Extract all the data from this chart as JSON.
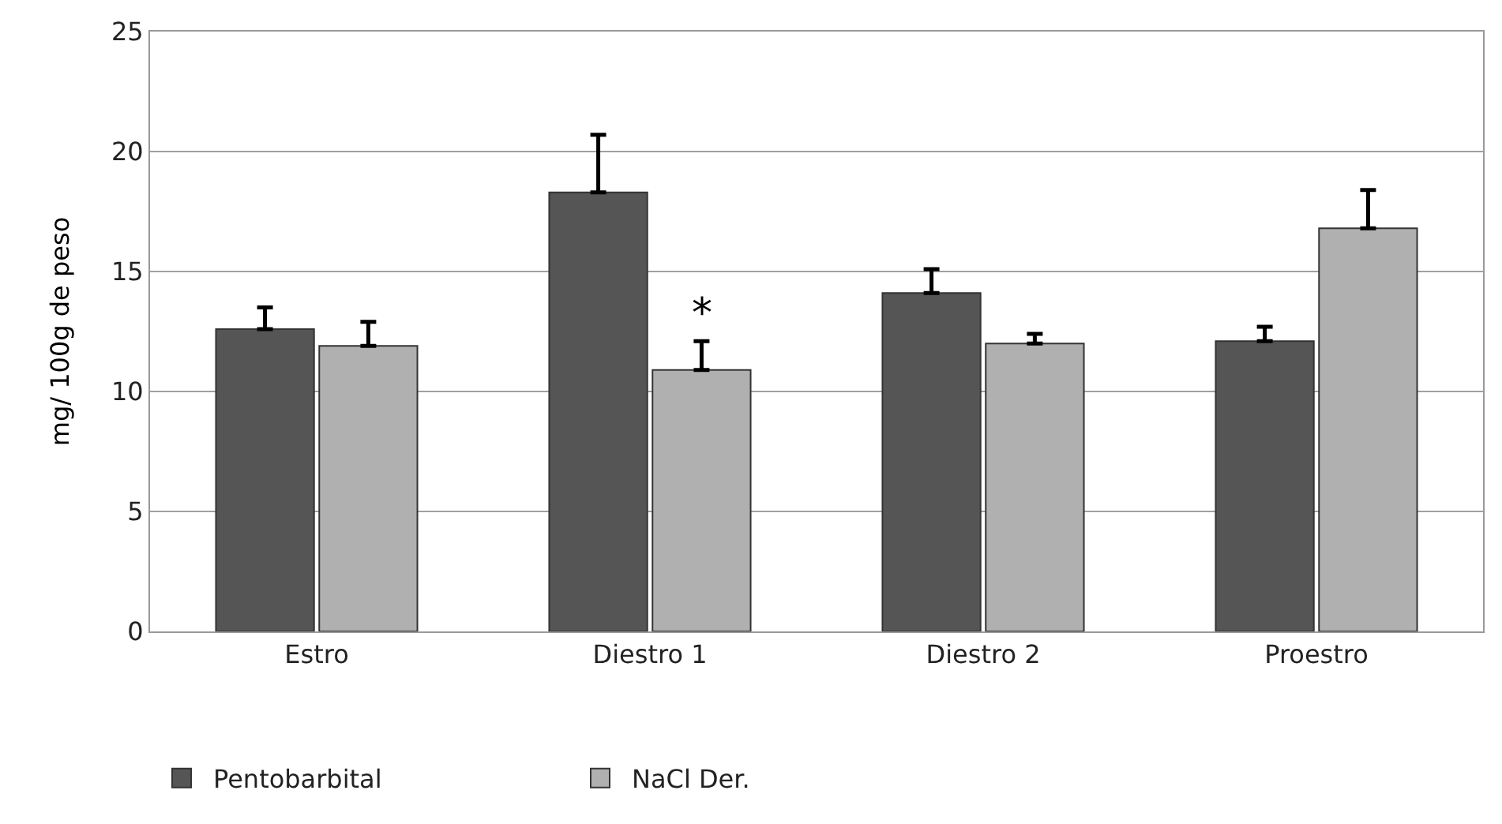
{
  "chart_data": {
    "type": "bar",
    "ylabel": "mg/ 100g de peso",
    "categories": [
      "Estro",
      "Diestro 1",
      "Diestro 2",
      "Proestro"
    ],
    "series": [
      {
        "name": "Pentobarbital",
        "color": "#555555",
        "values": [
          12.6,
          18.3,
          14.1,
          12.1
        ],
        "errors": [
          [
            12.6,
            13.5
          ],
          [
            18.3,
            20.7
          ],
          [
            14.1,
            15.1
          ],
          [
            12.1,
            12.7
          ]
        ]
      },
      {
        "name": "NaCl Der.",
        "color": "#b0b0b0",
        "values": [
          11.9,
          10.9,
          12.0,
          16.8
        ],
        "errors": [
          [
            11.9,
            12.9
          ],
          [
            10.9,
            12.1
          ],
          [
            12.0,
            12.4
          ],
          [
            16.8,
            18.4
          ]
        ]
      }
    ],
    "annotations": [
      {
        "text": "*",
        "x": "Diestro 1",
        "y": 12.1
      }
    ],
    "ylim": [
      0,
      25
    ],
    "yticks": [
      0,
      5,
      10,
      15,
      20,
      25
    ],
    "grid": "y",
    "legend": "bottom"
  }
}
